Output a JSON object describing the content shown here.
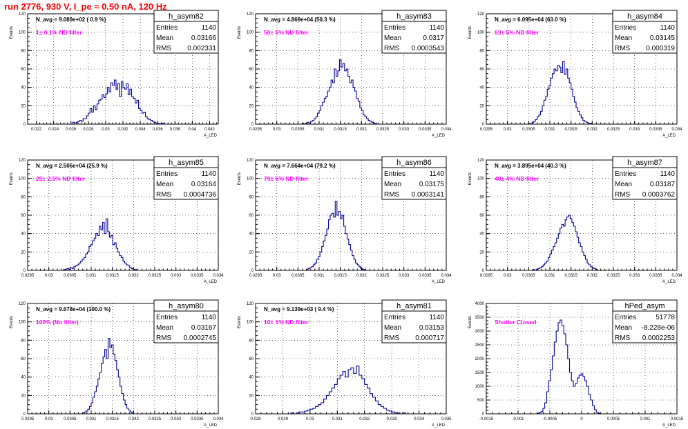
{
  "title": "run 2776,   930 V, I_pe ≈ 0.50 nA, 120 Hz",
  "colors": {
    "title": "#ff0000",
    "histogram": "#000099",
    "annotation": "#ff00ff"
  },
  "chart_data": [
    {
      "type": "histogram",
      "name": "h_asym82",
      "ylabel": "Events",
      "xlabel": "A_LED",
      "navg": "N_avg = 9.089e+02 ( 0.9 %)",
      "filter": "1± 0.1% ND filter",
      "entries": "1140",
      "mean": "0.03166",
      "rms": "0.002331",
      "xlim": [
        0.021,
        0.043
      ],
      "ylim": [
        0,
        120
      ],
      "xticks": [
        0.022,
        0.024,
        0.026,
        0.028,
        0.03,
        0.032,
        0.034,
        0.036,
        0.038,
        0.04,
        0.042
      ],
      "xtick_labels": [
        "0.022",
        "0.024",
        "0.026",
        "0.028",
        "0.03",
        "0.032",
        "0.034",
        "0.036",
        "0.038",
        "0.04",
        "0.042"
      ],
      "yticks": [
        0,
        20,
        40,
        60,
        80,
        100,
        120
      ],
      "bin_start": 0.0262,
      "bin_width": 0.0002,
      "counts": [
        2,
        0,
        2,
        3,
        4,
        3,
        6,
        6,
        9,
        12,
        17,
        13,
        20,
        16,
        22,
        26,
        27,
        32,
        29,
        33,
        40,
        35,
        45,
        42,
        48,
        38,
        44,
        30,
        46,
        40,
        38,
        44,
        32,
        38,
        30,
        28,
        23,
        26,
        17,
        15,
        12,
        13,
        8,
        6,
        5,
        4,
        3,
        2,
        1,
        1,
        0,
        1,
        1
      ]
    },
    {
      "type": "histogram",
      "name": "h_asym83",
      "ylabel": "Events",
      "xlabel": "A_LED",
      "navg": "N_avg = 4.869e+04 (50.3 %)",
      "filter": "50± 5% ND filter",
      "entries": "1140",
      "mean": "0.0317",
      "rms": "0.0003543",
      "xlim": [
        0.0295,
        0.034
      ],
      "ylim": [
        0,
        120
      ],
      "xticks": [
        0.0295,
        0.03,
        0.0305,
        0.031,
        0.0315,
        0.032,
        0.0325,
        0.033,
        0.0335,
        0.034
      ],
      "xtick_labels": [
        "0.0295",
        "0.03",
        "0.0305",
        "0.031",
        "0.0315",
        "0.032",
        "0.0325",
        "0.033",
        "0.0335",
        "0.034"
      ],
      "yticks": [
        0,
        20,
        40,
        60,
        80,
        100,
        120
      ],
      "bin_start": 0.0306,
      "bin_width": 4e-05,
      "counts": [
        1,
        0,
        1,
        2,
        1,
        3,
        4,
        6,
        8,
        12,
        15,
        20,
        24,
        28,
        30,
        36,
        40,
        48,
        45,
        60,
        52,
        58,
        70,
        62,
        66,
        58,
        60,
        52,
        45,
        48,
        40,
        36,
        28,
        25,
        18,
        15,
        10,
        8,
        6,
        4,
        3,
        2,
        1,
        1
      ]
    },
    {
      "type": "histogram",
      "name": "h_asym84",
      "ylabel": "Events",
      "xlabel": "A_LED",
      "navg": "N_avg = 6.095e+04 (63.0 %)",
      "filter": "63± 5% ND filter",
      "entries": "1140",
      "mean": "0.03145",
      "rms": "0.000319",
      "xlim": [
        0.0295,
        0.034
      ],
      "ylim": [
        0,
        120
      ],
      "xticks": [
        0.0295,
        0.03,
        0.0305,
        0.031,
        0.0315,
        0.032,
        0.0325,
        0.033,
        0.0335,
        0.034
      ],
      "xtick_labels": [
        "0.0295",
        "0.03",
        "0.0305",
        "0.031",
        "0.0315",
        "0.032",
        "0.0325",
        "0.033",
        "0.0335",
        "0.034"
      ],
      "yticks": [
        0,
        20,
        40,
        60,
        80,
        100,
        120
      ],
      "bin_start": 0.0305,
      "bin_width": 4e-05,
      "counts": [
        1,
        0,
        2,
        3,
        5,
        8,
        10,
        14,
        20,
        26,
        30,
        38,
        42,
        50,
        55,
        60,
        58,
        64,
        62,
        56,
        68,
        54,
        60,
        50,
        45,
        38,
        30,
        24,
        18,
        14,
        10,
        7,
        4,
        3,
        2,
        1,
        1
      ]
    },
    {
      "type": "histogram",
      "name": "h_asym85",
      "ylabel": "Events",
      "xlabel": "A_LED",
      "navg": "N_avg = 2.506e+04 (25.9 %)",
      "filter": "25± 2.5% ND filter",
      "entries": "1140",
      "mean": "0.03164",
      "rms": "0.0004736",
      "xlim": [
        0.0295,
        0.034
      ],
      "ylim": [
        0,
        120
      ],
      "xticks": [
        0.0295,
        0.03,
        0.0305,
        0.031,
        0.0315,
        0.032,
        0.0325,
        0.033,
        0.0335,
        0.034
      ],
      "xtick_labels": [
        "0.0295",
        "0.03",
        "0.0305",
        "0.031",
        "0.0315",
        "0.032",
        "0.0325",
        "0.033",
        "0.0335",
        "0.034"
      ],
      "yticks": [
        0,
        20,
        40,
        60,
        80,
        100,
        120
      ],
      "bin_start": 0.03035,
      "bin_width": 4e-05,
      "counts": [
        1,
        0,
        2,
        1,
        3,
        2,
        4,
        5,
        6,
        8,
        10,
        12,
        14,
        18,
        20,
        26,
        28,
        32,
        35,
        40,
        38,
        48,
        44,
        52,
        40,
        56,
        42,
        36,
        38,
        28,
        30,
        24,
        20,
        16,
        14,
        10,
        8,
        6,
        5,
        3,
        2,
        1,
        1
      ]
    },
    {
      "type": "histogram",
      "name": "h_asym86",
      "ylabel": "Events",
      "xlabel": "A_LED",
      "navg": "N_avg = 7.664e+04 (79.2 %)",
      "filter": "79± 5% ND filter",
      "entries": "1140",
      "mean": "0.03175",
      "rms": "0.0003141",
      "xlim": [
        0.0295,
        0.034
      ],
      "ylim": [
        0,
        120
      ],
      "xticks": [
        0.0295,
        0.03,
        0.0305,
        0.031,
        0.0315,
        0.032,
        0.0325,
        0.033,
        0.0335,
        0.034
      ],
      "xtick_labels": [
        "0.0295",
        "0.03",
        "0.0305",
        "0.031",
        "0.0315",
        "0.032",
        "0.0325",
        "0.033",
        "0.0335",
        "0.034"
      ],
      "yticks": [
        0,
        20,
        40,
        60,
        80,
        100,
        120
      ],
      "bin_start": 0.0307,
      "bin_width": 4e-05,
      "counts": [
        1,
        2,
        3,
        4,
        6,
        8,
        12,
        15,
        20,
        26,
        32,
        38,
        45,
        55,
        60,
        62,
        58,
        75,
        60,
        64,
        56,
        60,
        48,
        40,
        34,
        28,
        22,
        16,
        12,
        8,
        6,
        4,
        2,
        1,
        1
      ]
    },
    {
      "type": "histogram",
      "name": "h_asym87",
      "ylabel": "Events",
      "xlabel": "A_LED",
      "navg": "N_avg = 3.895e+04 (40.3 %)",
      "filter": "40± 4% ND filter",
      "entries": "1140",
      "mean": "0.03187",
      "rms": "0.0003762",
      "xlim": [
        0.0295,
        0.034
      ],
      "ylim": [
        0,
        120
      ],
      "xticks": [
        0.0295,
        0.03,
        0.0305,
        0.031,
        0.0315,
        0.032,
        0.0325,
        0.033,
        0.0335,
        0.034
      ],
      "xtick_labels": [
        "0.0295",
        "0.03",
        "0.0305",
        "0.031",
        "0.0315",
        "0.032",
        "0.0325",
        "0.033",
        "0.0335",
        "0.034"
      ],
      "yticks": [
        0,
        20,
        40,
        60,
        80,
        100,
        120
      ],
      "bin_start": 0.0306,
      "bin_width": 4e-05,
      "counts": [
        1,
        0,
        1,
        2,
        3,
        4,
        6,
        8,
        10,
        14,
        18,
        22,
        26,
        30,
        35,
        40,
        46,
        50,
        48,
        55,
        58,
        60,
        56,
        52,
        48,
        42,
        36,
        30,
        26,
        20,
        16,
        12,
        8,
        6,
        4,
        3,
        2,
        1
      ]
    },
    {
      "type": "histogram",
      "name": "h_asym80",
      "ylabel": "Events",
      "xlabel": "A_LED",
      "navg": "N_avg = 9.678e+04 (100.0 %)",
      "filter": "100% (No filter)",
      "entries": "1140",
      "mean": "0.03167",
      "rms": "0.0002745",
      "xlim": [
        0.0295,
        0.034
      ],
      "ylim": [
        0,
        120
      ],
      "xticks": [
        0.0295,
        0.03,
        0.0305,
        0.031,
        0.0315,
        0.032,
        0.0325,
        0.033,
        0.0335,
        0.034
      ],
      "xtick_labels": [
        "0.0295",
        "0.03",
        "0.0305",
        "0.031",
        "0.0315",
        "0.032",
        "0.0325",
        "0.033",
        "0.0335",
        "0.034"
      ],
      "yticks": [
        0,
        20,
        40,
        60,
        80,
        100,
        120
      ],
      "bin_start": 0.0308,
      "bin_width": 4e-05,
      "counts": [
        1,
        2,
        3,
        5,
        8,
        12,
        18,
        24,
        30,
        38,
        45,
        55,
        62,
        70,
        60,
        82,
        72,
        75,
        65,
        58,
        48,
        40,
        30,
        22,
        15,
        10,
        6,
        4,
        2,
        1
      ]
    },
    {
      "type": "histogram",
      "name": "h_asym81",
      "ylabel": "Events",
      "xlabel": "A_LED",
      "navg": "N_avg = 9.139e+03 ( 9.4 %)",
      "filter": "10± 1% ND filter",
      "entries": "1140",
      "mean": "0.03153",
      "rms": "0.000717",
      "xlim": [
        0.028,
        0.035
      ],
      "ylim": [
        0,
        120
      ],
      "xticks": [
        0.028,
        0.029,
        0.03,
        0.031,
        0.032,
        0.033,
        0.034,
        0.035
      ],
      "xtick_labels": [
        "0.028",
        "0.029",
        "0.03",
        "0.031",
        "0.032",
        "0.033",
        "0.034",
        "0.035"
      ],
      "yticks": [
        0,
        20,
        40,
        60,
        80,
        100,
        120
      ],
      "bin_start": 0.0293,
      "bin_width": 0.0001,
      "counts": [
        1,
        0,
        1,
        2,
        2,
        3,
        4,
        5,
        6,
        8,
        10,
        12,
        16,
        20,
        24,
        28,
        32,
        38,
        42,
        46,
        40,
        48,
        50,
        44,
        52,
        42,
        38,
        32,
        28,
        22,
        18,
        14,
        10,
        8,
        6,
        4,
        3,
        2,
        1,
        1,
        0,
        1
      ]
    },
    {
      "type": "histogram",
      "name": "hPed_asym",
      "ylabel": "Events",
      "xlabel": "A_LED",
      "navg": "",
      "filter": "Shutter Closed",
      "entries": "51778",
      "mean": "-8.228e-06",
      "rms": "0.0002253",
      "xlim": [
        -0.0015,
        0.0015
      ],
      "ylim": [
        0,
        4000
      ],
      "xticks": [
        -0.0015,
        -0.001,
        -0.0005,
        0,
        0.0005,
        0.001,
        0.0015
      ],
      "xtick_labels": [
        "-0.0015",
        "-0.001",
        "-0.0005",
        "0",
        "0.0005",
        "0.001",
        "0.0015"
      ],
      "yticks": [
        0,
        500,
        1000,
        1500,
        2000,
        2500,
        3000,
        3500,
        4000
      ],
      "bin_start": -0.0007,
      "bin_width": 3e-05,
      "counts": [
        20,
        40,
        80,
        200,
        400,
        800,
        1200,
        1600,
        2100,
        2600,
        3000,
        3300,
        3400,
        3200,
        2900,
        2500,
        2000,
        1500,
        1200,
        1000,
        1100,
        1300,
        1400,
        1450,
        1350,
        1200,
        1000,
        700,
        500,
        300,
        150,
        60,
        20
      ]
    }
  ]
}
